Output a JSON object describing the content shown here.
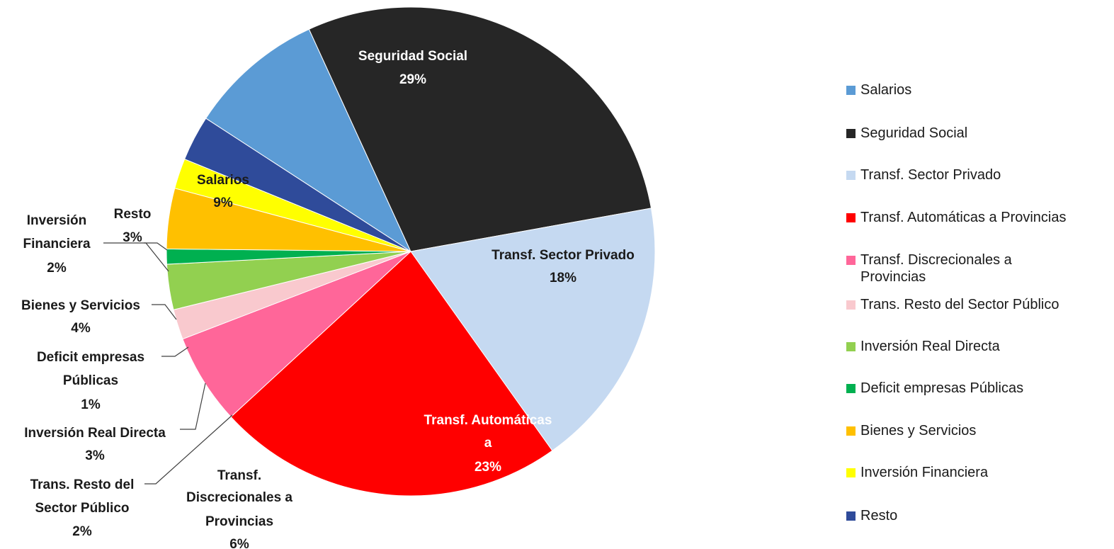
{
  "chart_data": {
    "type": "pie",
    "title": "",
    "slices": [
      {
        "label": "Salarios",
        "value": 9,
        "pct": "9%",
        "color": "#5B9BD5",
        "text_color": "#1a1a1a",
        "legend": "Salarios"
      },
      {
        "label": "Seguridad Social",
        "value": 29,
        "pct": "29%",
        "color": "#262626",
        "text_color": "#ffffff",
        "legend": "Seguridad Social"
      },
      {
        "label": "Transf. Sector Privado",
        "value": 18,
        "pct": "18%",
        "color": "#C5D9F1",
        "text_color": "#1a1a1a",
        "legend": "Transf. Sector Privado"
      },
      {
        "label": "Transf. Automáticas a Provincias",
        "value": 23,
        "pct": "23%",
        "color": "#FF0000",
        "text_color": "#ffffff",
        "legend": "Transf. Automáticas a Provincias"
      },
      {
        "label": "Transf. Discrecionales a Provincias",
        "value": 6,
        "pct": "6%",
        "color": "#FF6699",
        "text_color": "#1a1a1a",
        "legend": "Transf. Discrecionales a Provincias"
      },
      {
        "label": "Trans. Resto del Sector Público",
        "value": 2,
        "pct": "2%",
        "color": "#F9C9CE",
        "text_color": "#1a1a1a",
        "legend": "Trans. Resto del Sector Público"
      },
      {
        "label": "Inversión Real Directa",
        "value": 3,
        "pct": "3%",
        "color": "#92D050",
        "text_color": "#1a1a1a",
        "legend": "Inversión Real Directa"
      },
      {
        "label": "Deficit empresas Públicas",
        "value": 1,
        "pct": "1%",
        "color": "#00B050",
        "text_color": "#1a1a1a",
        "legend": "Deficit empresas Públicas"
      },
      {
        "label": "Bienes y Servicios",
        "value": 4,
        "pct": "4%",
        "color": "#FFC000",
        "text_color": "#1a1a1a",
        "legend": "Bienes y Servicios"
      },
      {
        "label": "Inversión Financiera",
        "value": 2,
        "pct": "2%",
        "color": "#FFFF00",
        "text_color": "#1a1a1a",
        "legend": "Inversión Financiera"
      },
      {
        "label": "Resto",
        "value": 3,
        "pct": "3%",
        "color": "#2F4B9A",
        "text_color": "#1a1a1a",
        "legend": "Resto"
      }
    ],
    "legend_position": "right",
    "legend_order": [
      "Salarios",
      "Seguridad Social",
      "Transf. Sector Privado",
      "Transf. Automáticas a Provincias",
      "Transf. Discrecionales a Provincias",
      "Trans. Resto del Sector Público",
      "Inversión Real Directa",
      "Deficit empresas Públicas",
      "Bienes y Servicios",
      "Inversión Financiera",
      "Resto"
    ]
  }
}
